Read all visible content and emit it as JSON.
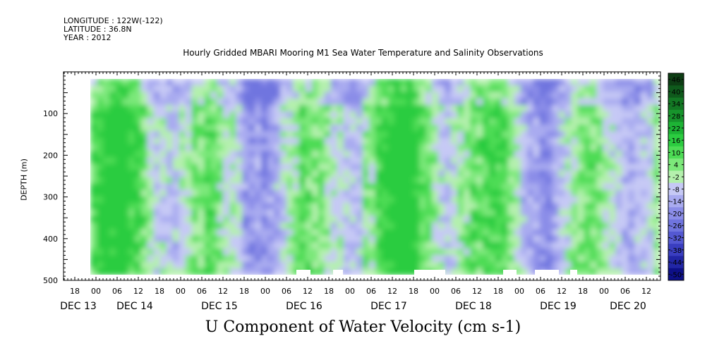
{
  "meta": {
    "longitude": "LONGITUDE : 122W(-122)",
    "latitude": "LATITUDE : 36.8N",
    "year": "YEAR : 2012"
  },
  "chart_data": {
    "type": "heatmap",
    "title": "Hourly Gridded MBARI Mooring M1 Sea Water Temperature and Salinity Observations",
    "xlabel": "U Component of Water Velocity (cm s-1)",
    "ylabel": "DEPTH (m)",
    "ylim": [
      500,
      0
    ],
    "y_ticks": [
      100,
      200,
      300,
      400,
      500
    ],
    "x_hour_ticks": [
      "18",
      "00",
      "06",
      "12",
      "18",
      "00",
      "06",
      "12",
      "18",
      "00",
      "06",
      "12",
      "18",
      "00",
      "06",
      "12",
      "18",
      "00",
      "06",
      "12",
      "18",
      "00",
      "06",
      "12",
      "18",
      "00",
      "06",
      "12"
    ],
    "x_day_labels": [
      "DEC 13",
      "DEC 14",
      "DEC 15",
      "DEC 16",
      "DEC 17",
      "DEC 18",
      "DEC 19",
      "DEC 20"
    ],
    "colorbar": {
      "labels": [
        "46",
        "40",
        "34",
        "28",
        "22",
        "16",
        "10",
        "4",
        "-2",
        "-8",
        "-14",
        "-20",
        "-26",
        "-32",
        "-38",
        "-44",
        "-50"
      ],
      "colors": [
        "#0d3d14",
        "#0f5a1c",
        "#137824",
        "#17942c",
        "#1db335",
        "#2bcc40",
        "#4ddc55",
        "#7ce87a",
        "#b4f0ad",
        "#c6c9f5",
        "#a9abf0",
        "#8b8de8",
        "#6f74df",
        "#5458d2",
        "#3a3ec0",
        "#2226a6",
        "#0e1088"
      ]
    },
    "gaps_note": ""
  }
}
